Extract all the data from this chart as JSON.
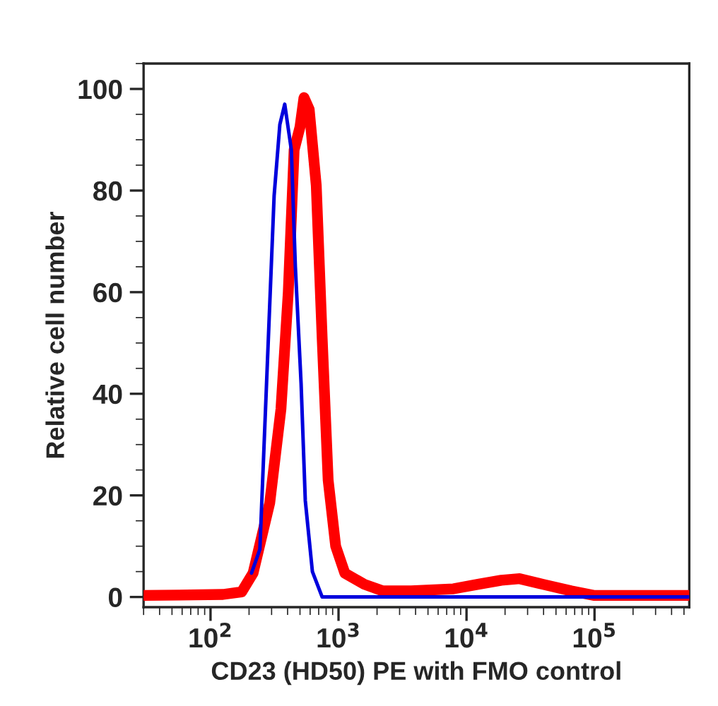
{
  "chart_data": {
    "type": "line",
    "xlabel": "CD23 (HD50) PE with FMO control",
    "ylabel": "Relative cell number",
    "log": "x",
    "xlim": [
      30,
      550000
    ],
    "ylim": [
      -2,
      105
    ],
    "xticks": [
      {
        "value": 100,
        "label": "10$^{2}$"
      },
      {
        "value": 1000,
        "label": "10$^{3}$"
      },
      {
        "value": 10000,
        "label": "10$^{4}$"
      },
      {
        "value": 100000,
        "label": "10$^{5}$"
      }
    ],
    "yticks": [
      0,
      20,
      40,
      60,
      80,
      100
    ],
    "grid": false,
    "legend": false,
    "marker": "none",
    "line_style": "solid",
    "series": [
      {
        "color": "#0000dd",
        "x": [
          209,
          243,
          278,
          314,
          348,
          380,
          428,
          460,
          510,
          550,
          625,
          745,
          550000
        ],
        "values": [
          4.7,
          9.4,
          46,
          79,
          93,
          97,
          88,
          65,
          42,
          19,
          5,
          0,
          0
        ]
      },
      {
        "color": "#ff0000",
        "x": [
          30,
          125,
          175,
          215,
          290,
          355,
          405,
          450,
          500,
          537,
          590,
          670,
          745,
          830,
          950,
          1120,
          1590,
          2220,
          3700,
          7900,
          12300,
          18700,
          26000,
          39500,
          66000,
          100000,
          550000
        ],
        "values": [
          0.3,
          0.5,
          1,
          4.7,
          18.5,
          37,
          60,
          88,
          92.5,
          98.3,
          96,
          81,
          51,
          23,
          10,
          4.7,
          2.5,
          1.2,
          1.2,
          1.6,
          2.5,
          3.3,
          3.6,
          2.5,
          1.2,
          0.3,
          0.3
        ]
      }
    ]
  }
}
